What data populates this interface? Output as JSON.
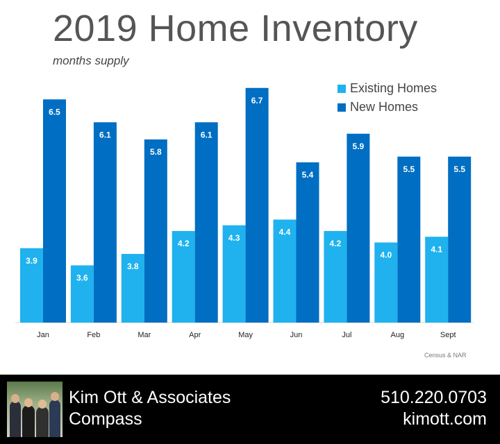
{
  "title": "2019 Home Inventory",
  "subtitle": "months supply",
  "source": "Census & NAR",
  "colors": {
    "existing": "#1FB2EE",
    "new": "#006EC2"
  },
  "chart_data": {
    "type": "bar",
    "title": "2019 Home Inventory",
    "subtitle": "months supply",
    "categories": [
      "Jan",
      "Feb",
      "Mar",
      "Apr",
      "May",
      "Jun",
      "Jul",
      "Aug",
      "Sept"
    ],
    "series": [
      {
        "name": "Existing Homes",
        "values": [
          3.9,
          3.6,
          3.8,
          4.2,
          4.3,
          4.4,
          4.2,
          4.0,
          4.1
        ],
        "labels": [
          "3.9",
          "3.6",
          "3.8",
          "4.2",
          "4.3",
          "4.4",
          "4.2",
          "4.0",
          "4.1"
        ]
      },
      {
        "name": "New Homes",
        "values": [
          6.5,
          6.1,
          5.8,
          6.1,
          6.7,
          5.4,
          5.9,
          5.5,
          5.5
        ],
        "labels": [
          "6.5",
          "6.1",
          "5.8",
          "6.1",
          "6.7",
          "5.4",
          "5.9",
          "5.5",
          "5.5"
        ]
      }
    ],
    "ylim": [
      3,
      7
    ],
    "grid": false,
    "legend_position": "top-right",
    "data_labels": true
  },
  "footer": {
    "company_name": "Kim Ott & Associates",
    "brokerage": "Compass",
    "phone": "510.220.0703",
    "website": "kimott.com",
    "photo_icon": "team-photo"
  }
}
